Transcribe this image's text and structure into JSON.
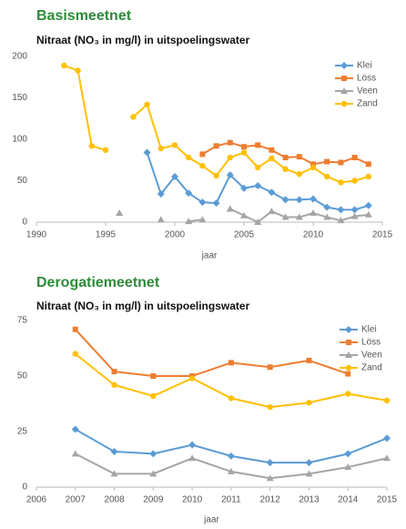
{
  "chart_data": [
    {
      "type": "line",
      "title": "Basismeetnet",
      "subtitle": "Nitraat (NO₃ in mg/l) in uitspoelingswater",
      "x_label": "jaar",
      "x": [
        1992,
        1993,
        1994,
        1995,
        1996,
        1997,
        1998,
        1999,
        2000,
        2001,
        2002,
        2003,
        2004,
        2005,
        2006,
        2007,
        2008,
        2009,
        2010,
        2011,
        2012,
        2013,
        2014
      ],
      "series": [
        {
          "name": "Klei",
          "color": "#5b9bd5",
          "marker": "diamond",
          "values": [
            null,
            null,
            null,
            null,
            null,
            null,
            84,
            34,
            55,
            35,
            24,
            23,
            57,
            41,
            44,
            36,
            27,
            27,
            28,
            18,
            15,
            15,
            20
          ]
        },
        {
          "name": "Löss",
          "color": "#ed7d31",
          "marker": "square",
          "values": [
            null,
            null,
            null,
            null,
            null,
            null,
            null,
            null,
            null,
            null,
            82,
            92,
            96,
            91,
            93,
            87,
            78,
            79,
            70,
            73,
            72,
            78,
            70
          ]
        },
        {
          "name": "Veen",
          "color": "#a5a5a5",
          "marker": "triangle",
          "values": [
            null,
            null,
            null,
            null,
            11,
            null,
            null,
            3,
            null,
            1,
            3,
            null,
            16,
            8,
            0,
            13,
            6,
            6,
            11,
            6,
            2,
            7,
            9
          ]
        },
        {
          "name": "Zand",
          "color": "#ffc000",
          "marker": "circle",
          "values": [
            189,
            183,
            92,
            87,
            null,
            127,
            142,
            89,
            93,
            78,
            68,
            56,
            78,
            84,
            66,
            77,
            64,
            58,
            66,
            55,
            48,
            50,
            55
          ]
        }
      ],
      "xlim": [
        1990,
        2015
      ],
      "xticks": [
        1990,
        1995,
        2000,
        2005,
        2010,
        2015
      ],
      "ylim": [
        0,
        200
      ],
      "yticks": [
        0,
        50,
        100,
        150,
        200
      ],
      "grid": false,
      "legend": "upper right"
    },
    {
      "type": "line",
      "title": "Derogatiemeetnet",
      "subtitle": "Nitraat (NO₃ in mg/l) in uitspoelingswater",
      "x_label": "jaar",
      "x": [
        2007,
        2008,
        2009,
        2010,
        2011,
        2012,
        2013,
        2014,
        2015
      ],
      "series": [
        {
          "name": "Klei",
          "color": "#5b9bd5",
          "marker": "diamond",
          "values": [
            26,
            16,
            15,
            19,
            14,
            11,
            11,
            15,
            22
          ]
        },
        {
          "name": "Löss",
          "color": "#ed7d31",
          "marker": "square",
          "values": [
            71,
            52,
            50,
            50,
            56,
            54,
            57,
            51,
            null
          ]
        },
        {
          "name": "Veen",
          "color": "#a5a5a5",
          "marker": "triangle",
          "values": [
            15,
            6,
            6,
            13,
            7,
            4,
            6,
            9,
            13
          ]
        },
        {
          "name": "Zand",
          "color": "#ffc000",
          "marker": "circle",
          "values": [
            60,
            46,
            41,
            49,
            40,
            36,
            38,
            42,
            39
          ]
        }
      ],
      "xlim": [
        2006,
        2015
      ],
      "xticks": [
        2006,
        2007,
        2008,
        2009,
        2010,
        2011,
        2012,
        2013,
        2014,
        2015
      ],
      "ylim": [
        0,
        75
      ],
      "yticks": [
        0,
        25,
        50,
        75
      ],
      "grid": false,
      "legend": "upper right"
    }
  ]
}
